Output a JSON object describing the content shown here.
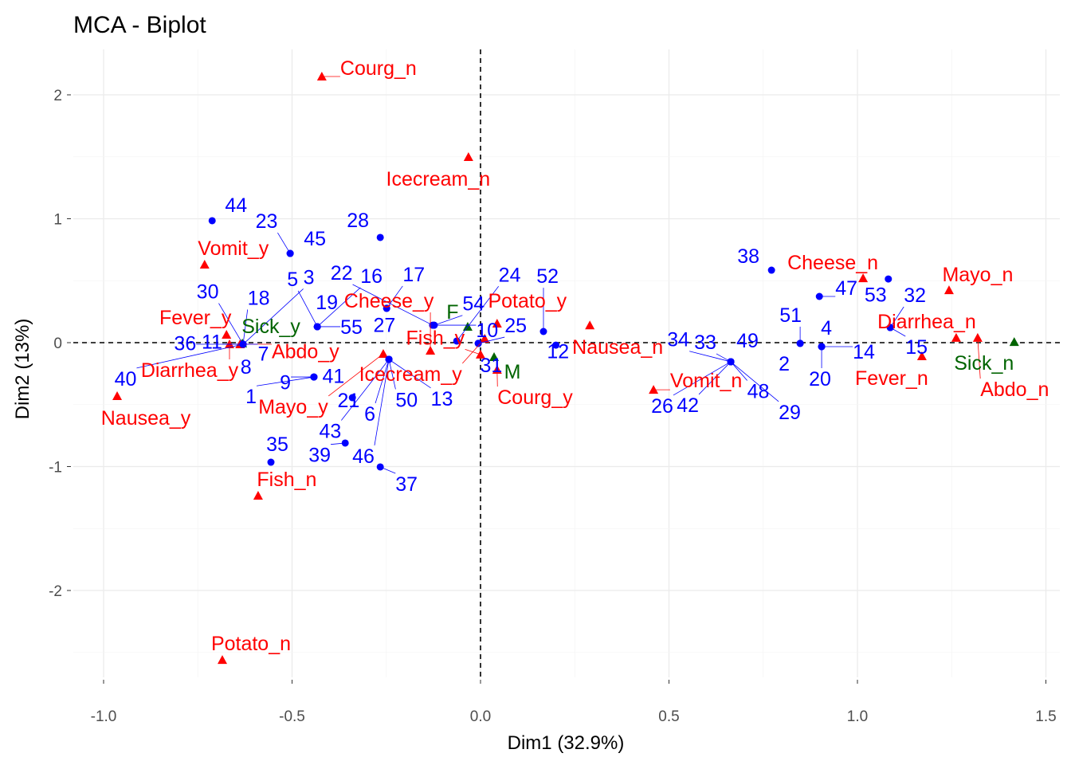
{
  "chart_data": {
    "type": "scatter",
    "title": "MCA - Biplot",
    "xlabel": "Dim1 (32.9%)",
    "ylabel": "Dim2 (13%)",
    "xlim": [
      -1.08,
      1.54
    ],
    "ylim": [
      -2.7,
      2.35
    ],
    "xticks": [
      -1.0,
      -0.5,
      0.0,
      0.5,
      1.0,
      1.5
    ],
    "xtick_labels": [
      "-1.0",
      "-0.5",
      "0.0",
      "0.5",
      "1.0",
      "1.5"
    ],
    "yticks": [
      -2,
      -1,
      0,
      1,
      2
    ],
    "ytick_labels": [
      "-2",
      "-1",
      "0",
      "1",
      "2"
    ],
    "grid": true,
    "reference_lines": "dashed at x=0 and y=0",
    "colors": {
      "individuals": "#0000FF",
      "variables": "#FF0000",
      "supplementary": "#006400"
    },
    "individuals": [
      {
        "id": "44",
        "x": -0.712,
        "y": 0.984
      },
      {
        "id": "23",
        "x": -0.505,
        "y": 0.72
      },
      {
        "id": "45",
        "x": -0.505,
        "y": 0.72
      },
      {
        "id": "28",
        "x": -0.266,
        "y": 0.849
      },
      {
        "id": "5",
        "x": -0.433,
        "y": 0.129
      },
      {
        "id": "16",
        "x": -0.433,
        "y": 0.129
      },
      {
        "id": "19",
        "x": -0.433,
        "y": 0.129
      },
      {
        "id": "55",
        "x": -0.433,
        "y": 0.129
      },
      {
        "id": "17",
        "x": -0.249,
        "y": 0.277
      },
      {
        "id": "27",
        "x": -0.249,
        "y": 0.277
      },
      {
        "id": "22",
        "x": -0.127,
        "y": 0.141
      },
      {
        "id": "54",
        "x": -0.123,
        "y": 0.141
      },
      {
        "id": "10",
        "x": -0.123,
        "y": 0.141
      },
      {
        "id": "40",
        "x": -0.63,
        "y": -0.013
      },
      {
        "id": "30",
        "x": -0.63,
        "y": -0.013
      },
      {
        "id": "18",
        "x": -0.63,
        "y": -0.013
      },
      {
        "id": "11",
        "x": -0.63,
        "y": -0.013
      },
      {
        "id": "7",
        "x": -0.63,
        "y": -0.013
      },
      {
        "id": "36",
        "x": -0.63,
        "y": -0.013
      },
      {
        "id": "8",
        "x": -0.63,
        "y": -0.013
      },
      {
        "id": "3",
        "x": -0.63,
        "y": -0.013
      },
      {
        "id": "41",
        "x": -0.442,
        "y": -0.277
      },
      {
        "id": "9",
        "x": -0.442,
        "y": -0.277
      },
      {
        "id": "1",
        "x": -0.442,
        "y": -0.277
      },
      {
        "id": "50",
        "x": -0.243,
        "y": -0.135
      },
      {
        "id": "13",
        "x": -0.243,
        "y": -0.135
      },
      {
        "id": "43",
        "x": -0.243,
        "y": -0.135
      },
      {
        "id": "6",
        "x": -0.243,
        "y": -0.135
      },
      {
        "id": "46",
        "x": -0.243,
        "y": -0.135
      },
      {
        "id": "21",
        "x": -0.34,
        "y": -0.444
      },
      {
        "id": "39",
        "x": -0.359,
        "y": -0.81
      },
      {
        "id": "35",
        "x": -0.556,
        "y": -0.965
      },
      {
        "id": "37",
        "x": -0.266,
        "y": -1.003
      },
      {
        "id": "24",
        "x": -0.063,
        "y": 0.013
      },
      {
        "id": "25",
        "x": -0.006,
        "y": -0.006
      },
      {
        "id": "31",
        "x": -0.006,
        "y": -0.006
      },
      {
        "id": "52",
        "x": 0.167,
        "y": 0.09
      },
      {
        "id": "12",
        "x": 0.2,
        "y": -0.02
      },
      {
        "id": "34",
        "x": 0.664,
        "y": -0.154
      },
      {
        "id": "33",
        "x": 0.664,
        "y": -0.154
      },
      {
        "id": "49",
        "x": 0.664,
        "y": -0.154
      },
      {
        "id": "42",
        "x": 0.664,
        "y": -0.154
      },
      {
        "id": "48",
        "x": 0.664,
        "y": -0.154
      },
      {
        "id": "26",
        "x": 0.664,
        "y": -0.154
      },
      {
        "id": "29",
        "x": 0.664,
        "y": -0.154
      },
      {
        "id": "38",
        "x": 0.772,
        "y": 0.585
      },
      {
        "id": "47",
        "x": 0.899,
        "y": 0.373
      },
      {
        "id": "53",
        "x": 1.082,
        "y": 0.514
      },
      {
        "id": "32",
        "x": 1.087,
        "y": 0.122
      },
      {
        "id": "15",
        "x": 1.087,
        "y": 0.122
      },
      {
        "id": "51",
        "x": 0.848,
        "y": -0.006
      },
      {
        "id": "2",
        "x": 0.848,
        "y": -0.006
      },
      {
        "id": "4",
        "x": 0.905,
        "y": -0.032
      },
      {
        "id": "14",
        "x": 0.905,
        "y": -0.032
      },
      {
        "id": "20",
        "x": 0.905,
        "y": -0.032
      }
    ],
    "variables": [
      {
        "id": "Courg_n",
        "x": -0.421,
        "y": 2.148
      },
      {
        "id": "Icecream_n",
        "x": -0.032,
        "y": 1.498
      },
      {
        "id": "Vomit_y",
        "x": -0.732,
        "y": 0.63
      },
      {
        "id": "Fever_y",
        "x": -0.674,
        "y": 0.064
      },
      {
        "id": "Diarrhea_y",
        "x": -0.666,
        "y": -0.013
      },
      {
        "id": "Abdo_y",
        "x": -0.638,
        "y": -0.013
      },
      {
        "id": "Nausea_y",
        "x": -0.964,
        "y": -0.431
      },
      {
        "id": "Fish_n",
        "x": -0.59,
        "y": -1.235
      },
      {
        "id": "Potato_n",
        "x": -0.685,
        "y": -2.56
      },
      {
        "id": "Mayo_y",
        "x": -0.258,
        "y": -0.09
      },
      {
        "id": "Cheese_y",
        "x": -0.133,
        "y": -0.064
      },
      {
        "id": "Icecream_y",
        "x": 0.011,
        "y": 0.032
      },
      {
        "id": "Fish_y",
        "x": 0.0,
        "y": -0.096
      },
      {
        "id": "Potato_y",
        "x": 0.044,
        "y": 0.154
      },
      {
        "id": "Courg_y",
        "x": 0.044,
        "y": -0.219
      },
      {
        "id": "Nausea_n",
        "x": 0.29,
        "y": 0.14
      },
      {
        "id": "Vomit_n",
        "x": 0.459,
        "y": -0.38
      },
      {
        "id": "Cheese_n",
        "x": 1.015,
        "y": 0.52
      },
      {
        "id": "Mayo_n",
        "x": 1.243,
        "y": 0.424
      },
      {
        "id": "Diarrhea_n",
        "x": 1.262,
        "y": 0.039
      },
      {
        "id": "Abdo_n",
        "x": 1.319,
        "y": 0.039
      },
      {
        "id": "Fever_n",
        "x": 1.171,
        "y": -0.109
      }
    ],
    "supplementary": [
      {
        "id": "Sick_y",
        "x": -0.632,
        "y": -0.006
      },
      {
        "id": "Sick_n",
        "x": 1.416,
        "y": 0.006
      },
      {
        "id": "F",
        "x": -0.034,
        "y": 0.129
      },
      {
        "id": "M",
        "x": 0.036,
        "y": -0.116
      }
    ]
  }
}
